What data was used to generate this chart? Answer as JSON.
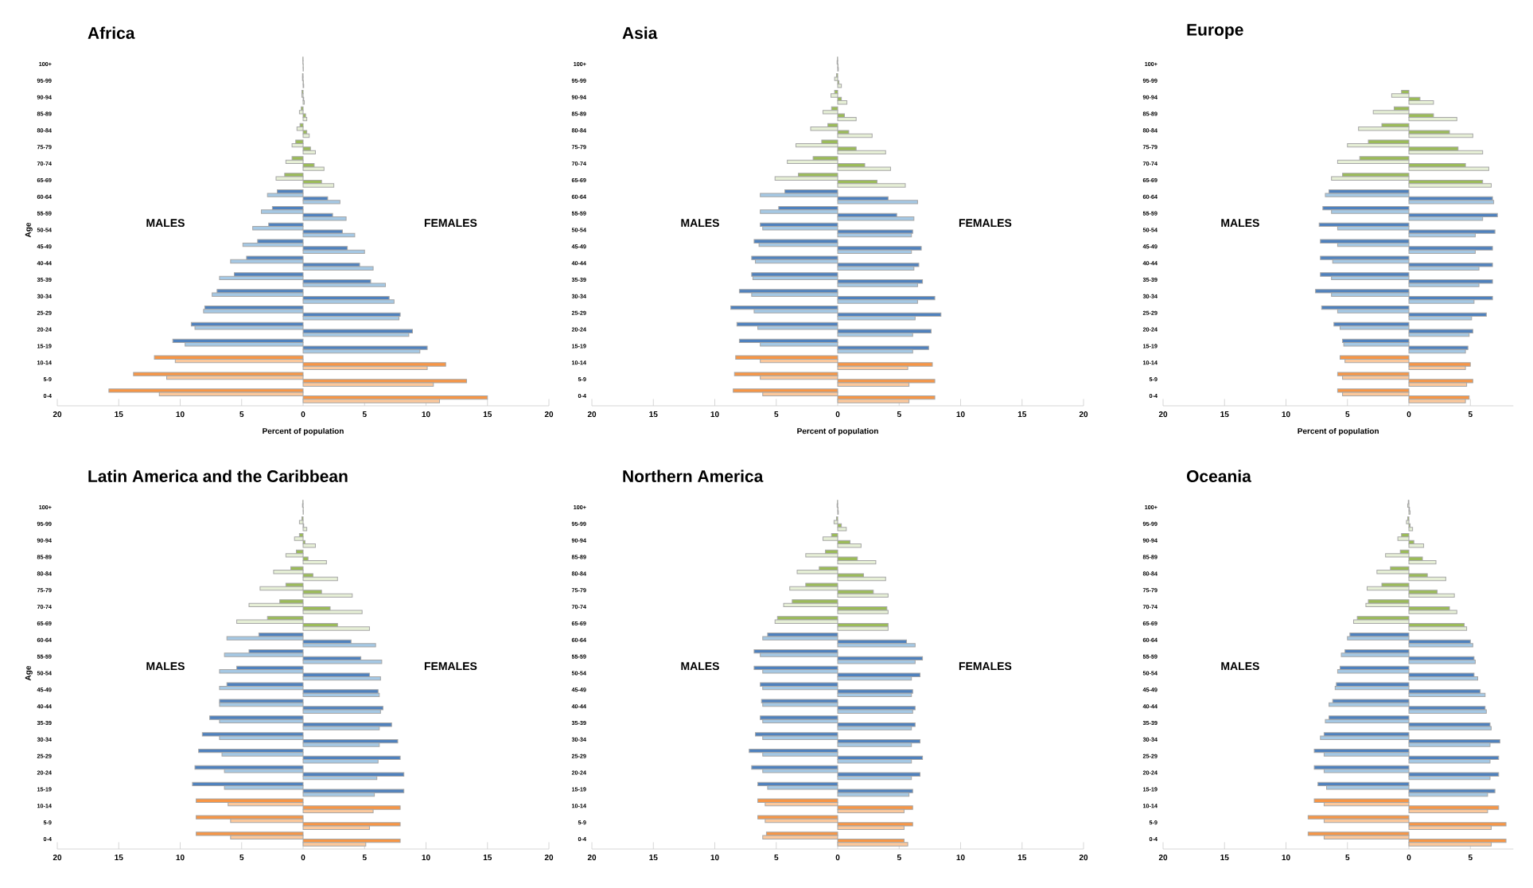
{
  "chart_data": [
    {
      "type": "bar",
      "orientation": "horizontal",
      "title": "Africa",
      "xlabel": "Percent of population",
      "ylabel": "Age",
      "categories": [
        "100+",
        "95-99",
        "90-94",
        "85-89",
        "80-84",
        "75-79",
        "70-74",
        "65-69",
        "60-64",
        "55-59",
        "50-54",
        "45-49",
        "40-44",
        "35-39",
        "30-34",
        "25-29",
        "20-24",
        "15-19",
        "10-14",
        "5-9",
        "0-4"
      ],
      "xlim": [
        -20,
        20
      ],
      "xticks": [
        {
          "value": -20,
          "label": "20"
        },
        {
          "value": -15,
          "label": "15"
        },
        {
          "value": -10,
          "label": "10"
        },
        {
          "value": -5,
          "label": "5"
        },
        0,
        5,
        10,
        15,
        20
      ],
      "annotations": [
        "MALES",
        "FEMALES"
      ],
      "series": [
        {
          "values": [
            -0.02,
            -0.05,
            -0.1,
            -0.15,
            -0.25,
            -0.6,
            -0.9,
            -1.5,
            -2.1,
            -2.5,
            -2.8,
            -3.7,
            -4.6,
            -5.6,
            -7.0,
            -8.0,
            -9.1,
            -10.6,
            -12.1,
            -13.8,
            -15.8
          ],
          "colors": [
            "#9bbb59",
            "#9bbb59",
            "#9bbb59",
            "#9bbb59",
            "#9bbb59",
            "#9bbb59",
            "#9bbb59",
            "#9bbb59",
            "#4f81bd",
            "#4f81bd",
            "#4f81bd",
            "#4f81bd",
            "#4f81bd",
            "#4f81bd",
            "#4f81bd",
            "#4f81bd",
            "#4f81bd",
            "#4f81bd",
            "#f79646",
            "#f79646",
            "#f79646"
          ]
        },
        {
          "values": [
            -0.02,
            -0.05,
            -0.1,
            -0.3,
            -0.5,
            -0.9,
            -1.4,
            -2.2,
            -2.9,
            -3.4,
            -4.1,
            -4.9,
            -5.9,
            -6.8,
            -7.4,
            -8.1,
            -8.8,
            -9.6,
            -10.4,
            -11.1,
            -11.7
          ],
          "colors": [
            "#e6efd6",
            "#e6efd6",
            "#e6efd6",
            "#e6efd6",
            "#e6efd6",
            "#e6efd6",
            "#e6efd6",
            "#e6efd6",
            "#a5c8e4",
            "#a5c8e4",
            "#a5c8e4",
            "#a5c8e4",
            "#a5c8e4",
            "#a5c8e4",
            "#a5c8e4",
            "#a5c8e4",
            "#a5c8e4",
            "#a5c8e4",
            "#fbc89c",
            "#fbc89c",
            "#fbc89c"
          ]
        },
        {
          "values": [
            0.01,
            0.02,
            0.05,
            0.2,
            0.3,
            0.6,
            0.9,
            1.5,
            2.0,
            2.4,
            3.2,
            3.6,
            4.6,
            5.5,
            7.0,
            7.9,
            8.9,
            10.1,
            11.6,
            13.3,
            15.0
          ],
          "colors": [
            "#9bbb59",
            "#9bbb59",
            "#9bbb59",
            "#9bbb59",
            "#9bbb59",
            "#9bbb59",
            "#9bbb59",
            "#9bbb59",
            "#4f81bd",
            "#4f81bd",
            "#4f81bd",
            "#4f81bd",
            "#4f81bd",
            "#4f81bd",
            "#4f81bd",
            "#4f81bd",
            "#4f81bd",
            "#4f81bd",
            "#f79646",
            "#f79646",
            "#f79646"
          ]
        },
        {
          "values": [
            0.02,
            0.05,
            0.1,
            0.3,
            0.5,
            1.0,
            1.7,
            2.5,
            3.0,
            3.5,
            4.2,
            5.0,
            5.7,
            6.7,
            7.4,
            7.8,
            8.6,
            9.5,
            10.1,
            10.6,
            11.1
          ],
          "colors": [
            "#e6efd6",
            "#e6efd6",
            "#e6efd6",
            "#e6efd6",
            "#e6efd6",
            "#e6efd6",
            "#e6efd6",
            "#e6efd6",
            "#a5c8e4",
            "#a5c8e4",
            "#a5c8e4",
            "#a5c8e4",
            "#a5c8e4",
            "#a5c8e4",
            "#a5c8e4",
            "#a5c8e4",
            "#a5c8e4",
            "#a5c8e4",
            "#fbc89c",
            "#fbc89c",
            "#fbc89c"
          ]
        }
      ]
    },
    {
      "type": "bar",
      "orientation": "horizontal",
      "title": "Asia",
      "xlabel": "Percent of population",
      "categories": [
        "100+",
        "95-99",
        "90-94",
        "85-89",
        "80-84",
        "75-79",
        "70-74",
        "65-69",
        "60-64",
        "55-59",
        "50-54",
        "45-49",
        "40-44",
        "35-39",
        "30-34",
        "25-29",
        "20-24",
        "15-19",
        "10-14",
        "5-9",
        "0-4"
      ],
      "xlim": [
        -20,
        20
      ],
      "xticks": [
        {
          "value": -20,
          "label": "20"
        },
        {
          "value": -15,
          "label": "15"
        },
        {
          "value": -10,
          "label": "10"
        },
        {
          "value": -5,
          "label": "5"
        },
        0,
        5,
        10,
        15,
        20
      ],
      "annotations": [
        "MALES",
        "FEMALES"
      ],
      "series": [
        {
          "values": [
            -0.02,
            -0.1,
            -0.25,
            -0.5,
            -0.8,
            -1.3,
            -2.0,
            -3.2,
            -4.3,
            -4.8,
            -6.3,
            -6.8,
            -7.0,
            -7.0,
            -8.0,
            -8.7,
            -8.2,
            -8.0,
            -8.3,
            -8.4,
            -8.5
          ],
          "colors": [
            "#9bbb59",
            "#9bbb59",
            "#9bbb59",
            "#9bbb59",
            "#9bbb59",
            "#9bbb59",
            "#9bbb59",
            "#9bbb59",
            "#4f81bd",
            "#4f81bd",
            "#4f81bd",
            "#4f81bd",
            "#4f81bd",
            "#4f81bd",
            "#4f81bd",
            "#4f81bd",
            "#4f81bd",
            "#4f81bd",
            "#f79646",
            "#f79646",
            "#f79646"
          ]
        },
        {
          "values": [
            -0.05,
            -0.25,
            -0.55,
            -1.2,
            -2.2,
            -3.4,
            -4.1,
            -5.1,
            -6.3,
            -6.3,
            -6.1,
            -6.4,
            -6.7,
            -6.9,
            -7.0,
            -6.8,
            -6.5,
            -6.3,
            -6.3,
            -6.3,
            -6.1
          ],
          "colors": [
            "#e6efd6",
            "#e6efd6",
            "#e6efd6",
            "#e6efd6",
            "#e6efd6",
            "#e6efd6",
            "#e6efd6",
            "#e6efd6",
            "#a5c8e4",
            "#a5c8e4",
            "#a5c8e4",
            "#a5c8e4",
            "#a5c8e4",
            "#a5c8e4",
            "#a5c8e4",
            "#a5c8e4",
            "#a5c8e4",
            "#a5c8e4",
            "#fbc89c",
            "#fbc89c",
            "#fbc89c"
          ]
        },
        {
          "values": [
            0.02,
            0.1,
            0.3,
            0.55,
            0.9,
            1.5,
            2.2,
            3.2,
            4.1,
            4.8,
            6.1,
            6.8,
            6.6,
            6.9,
            7.9,
            8.4,
            7.6,
            7.4,
            7.7,
            7.9,
            7.9
          ],
          "colors": [
            "#9bbb59",
            "#9bbb59",
            "#9bbb59",
            "#9bbb59",
            "#9bbb59",
            "#9bbb59",
            "#9bbb59",
            "#9bbb59",
            "#4f81bd",
            "#4f81bd",
            "#4f81bd",
            "#4f81bd",
            "#4f81bd",
            "#4f81bd",
            "#4f81bd",
            "#4f81bd",
            "#4f81bd",
            "#4f81bd",
            "#f79646",
            "#f79646",
            "#f79646"
          ]
        },
        {
          "values": [
            0.05,
            0.3,
            0.75,
            1.5,
            2.8,
            3.9,
            4.3,
            5.5,
            6.5,
            6.2,
            6.0,
            6.0,
            6.2,
            6.5,
            6.5,
            6.3,
            6.1,
            6.1,
            5.7,
            5.8,
            5.8
          ],
          "colors": [
            "#e6efd6",
            "#e6efd6",
            "#e6efd6",
            "#e6efd6",
            "#e6efd6",
            "#e6efd6",
            "#e6efd6",
            "#e6efd6",
            "#a5c8e4",
            "#a5c8e4",
            "#a5c8e4",
            "#a5c8e4",
            "#a5c8e4",
            "#a5c8e4",
            "#a5c8e4",
            "#a5c8e4",
            "#a5c8e4",
            "#a5c8e4",
            "#fbc89c",
            "#fbc89c",
            "#fbc89c"
          ]
        }
      ]
    },
    {
      "type": "bar",
      "orientation": "horizontal",
      "title": "Europe",
      "xlabel": "Percent of population",
      "categories": [
        "100+",
        "95-99",
        "90-94",
        "85-89",
        "80-84",
        "75-79",
        "70-74",
        "65-69",
        "60-64",
        "55-59",
        "50-54",
        "45-49",
        "40-44",
        "35-39",
        "30-34",
        "25-29",
        "20-24",
        "15-19",
        "10-14",
        "5-9",
        "0-4"
      ],
      "xlim": [
        -20,
        8.5
      ],
      "xticks": [
        {
          "value": -20,
          "label": "20"
        },
        {
          "value": -15,
          "label": "15"
        },
        {
          "value": -10,
          "label": "10"
        },
        {
          "value": -5,
          "label": "5"
        },
        0,
        5
      ],
      "annotations": [
        "MALES"
      ],
      "series": [
        {
          "values": [
            null,
            null,
            -0.6,
            -1.2,
            -2.2,
            -3.3,
            -4.0,
            -5.4,
            -6.5,
            -7.0,
            -7.3,
            -7.2,
            -7.2,
            -7.2,
            -7.6,
            -7.1,
            -6.1,
            -5.4,
            -5.6,
            -5.8,
            -5.8
          ],
          "colors": [
            "#9bbb59",
            "#9bbb59",
            "#9bbb59",
            "#9bbb59",
            "#9bbb59",
            "#9bbb59",
            "#9bbb59",
            "#9bbb59",
            "#4f81bd",
            "#4f81bd",
            "#4f81bd",
            "#4f81bd",
            "#4f81bd",
            "#4f81bd",
            "#4f81bd",
            "#4f81bd",
            "#4f81bd",
            "#4f81bd",
            "#f79646",
            "#f79646",
            "#f79646"
          ]
        },
        {
          "values": [
            null,
            null,
            -1.4,
            -2.9,
            -4.1,
            -5.0,
            -5.8,
            -6.3,
            -6.8,
            -6.3,
            -5.8,
            -5.8,
            -6.2,
            -6.3,
            -6.3,
            -5.8,
            -5.6,
            -5.3,
            -5.2,
            -5.4,
            -5.4
          ],
          "colors": [
            "#e6efd6",
            "#e6efd6",
            "#e6efd6",
            "#e6efd6",
            "#e6efd6",
            "#e6efd6",
            "#e6efd6",
            "#e6efd6",
            "#a5c8e4",
            "#a5c8e4",
            "#a5c8e4",
            "#a5c8e4",
            "#a5c8e4",
            "#a5c8e4",
            "#a5c8e4",
            "#a5c8e4",
            "#a5c8e4",
            "#a5c8e4",
            "#fbc89c",
            "#fbc89c",
            "#fbc89c"
          ]
        },
        {
          "values": [
            null,
            null,
            0.9,
            2.0,
            3.3,
            4.0,
            4.6,
            6.0,
            6.8,
            7.2,
            7.0,
            6.8,
            6.8,
            6.8,
            6.8,
            6.3,
            5.2,
            4.8,
            5.0,
            5.2,
            4.9
          ],
          "colors": [
            "#9bbb59",
            "#9bbb59",
            "#9bbb59",
            "#9bbb59",
            "#9bbb59",
            "#9bbb59",
            "#9bbb59",
            "#9bbb59",
            "#4f81bd",
            "#4f81bd",
            "#4f81bd",
            "#4f81bd",
            "#4f81bd",
            "#4f81bd",
            "#4f81bd",
            "#4f81bd",
            "#4f81bd",
            "#4f81bd",
            "#f79646",
            "#f79646",
            "#f79646"
          ]
        },
        {
          "values": [
            null,
            null,
            2.0,
            3.9,
            5.2,
            6.0,
            6.5,
            6.7,
            6.9,
            6.0,
            5.4,
            5.4,
            5.7,
            5.7,
            5.3,
            5.1,
            4.9,
            4.6,
            4.6,
            4.7,
            4.6
          ],
          "colors": [
            "#e6efd6",
            "#e6efd6",
            "#e6efd6",
            "#e6efd6",
            "#e6efd6",
            "#e6efd6",
            "#e6efd6",
            "#e6efd6",
            "#a5c8e4",
            "#a5c8e4",
            "#a5c8e4",
            "#a5c8e4",
            "#a5c8e4",
            "#a5c8e4",
            "#a5c8e4",
            "#a5c8e4",
            "#a5c8e4",
            "#a5c8e4",
            "#fbc89c",
            "#fbc89c",
            "#fbc89c"
          ]
        }
      ]
    },
    {
      "type": "bar",
      "orientation": "horizontal",
      "title": "Latin America and the Caribbean",
      "ylabel": "Age",
      "categories": [
        "100+",
        "95-99",
        "90-94",
        "85-89",
        "80-84",
        "75-79",
        "70-74",
        "65-69",
        "60-64",
        "55-59",
        "50-54",
        "45-49",
        "40-44",
        "35-39",
        "30-34",
        "25-29",
        "20-24",
        "15-19",
        "10-14",
        "5-9",
        "0-4"
      ],
      "xlim": [
        -20,
        20
      ],
      "xticks": [
        {
          "value": -20,
          "label": "20"
        },
        {
          "value": -15,
          "label": "15"
        },
        {
          "value": -10,
          "label": "10"
        },
        {
          "value": -5,
          "label": "5"
        },
        0,
        5,
        10,
        15,
        20
      ],
      "annotations": [
        "MALES",
        "FEMALES"
      ],
      "series": [
        {
          "values": [
            -0.02,
            -0.1,
            -0.3,
            -0.55,
            -1.0,
            -1.4,
            -1.9,
            -2.9,
            -3.6,
            -4.4,
            -5.4,
            -6.2,
            -6.8,
            -7.6,
            -8.2,
            -8.5,
            -8.8,
            -9.0,
            -8.7,
            -8.7,
            -8.7
          ],
          "colors": [
            "#9bbb59",
            "#9bbb59",
            "#9bbb59",
            "#9bbb59",
            "#9bbb59",
            "#9bbb59",
            "#9bbb59",
            "#9bbb59",
            "#4f81bd",
            "#4f81bd",
            "#4f81bd",
            "#4f81bd",
            "#4f81bd",
            "#4f81bd",
            "#4f81bd",
            "#4f81bd",
            "#4f81bd",
            "#4f81bd",
            "#f79646",
            "#f79646",
            "#f79646"
          ]
        },
        {
          "values": [
            -0.05,
            -0.3,
            -0.7,
            -1.4,
            -2.4,
            -3.5,
            -4.4,
            -5.4,
            -6.2,
            -6.4,
            -6.8,
            -6.8,
            -6.8,
            -6.8,
            -6.8,
            -6.6,
            -6.4,
            -6.4,
            -6.1,
            -5.9,
            -5.9
          ],
          "colors": [
            "#e6efd6",
            "#e6efd6",
            "#e6efd6",
            "#e6efd6",
            "#e6efd6",
            "#e6efd6",
            "#e6efd6",
            "#e6efd6",
            "#a5c8e4",
            "#a5c8e4",
            "#a5c8e4",
            "#a5c8e4",
            "#a5c8e4",
            "#a5c8e4",
            "#a5c8e4",
            "#a5c8e4",
            "#a5c8e4",
            "#a5c8e4",
            "#fbc89c",
            "#fbc89c",
            "#fbc89c"
          ]
        },
        {
          "values": [
            0.01,
            0.05,
            0.15,
            0.4,
            0.8,
            1.5,
            2.2,
            2.8,
            3.9,
            4.7,
            5.4,
            6.1,
            6.5,
            7.2,
            7.7,
            7.9,
            8.2,
            8.2,
            7.9,
            7.9,
            7.9
          ],
          "colors": [
            "#9bbb59",
            "#9bbb59",
            "#9bbb59",
            "#9bbb59",
            "#9bbb59",
            "#9bbb59",
            "#9bbb59",
            "#9bbb59",
            "#4f81bd",
            "#4f81bd",
            "#4f81bd",
            "#4f81bd",
            "#4f81bd",
            "#4f81bd",
            "#4f81bd",
            "#4f81bd",
            "#4f81bd",
            "#4f81bd",
            "#f79646",
            "#f79646",
            "#f79646"
          ]
        },
        {
          "values": [
            0.02,
            0.3,
            1.0,
            1.9,
            2.8,
            4.0,
            4.8,
            5.4,
            5.9,
            6.4,
            6.3,
            6.2,
            6.3,
            6.2,
            6.2,
            6.1,
            6.0,
            5.8,
            5.7,
            5.4,
            5.1
          ],
          "colors": [
            "#e6efd6",
            "#e6efd6",
            "#e6efd6",
            "#e6efd6",
            "#e6efd6",
            "#e6efd6",
            "#e6efd6",
            "#e6efd6",
            "#a5c8e4",
            "#a5c8e4",
            "#a5c8e4",
            "#a5c8e4",
            "#a5c8e4",
            "#a5c8e4",
            "#a5c8e4",
            "#a5c8e4",
            "#a5c8e4",
            "#a5c8e4",
            "#fbc89c",
            "#fbc89c",
            "#fbc89c"
          ]
        }
      ]
    },
    {
      "type": "bar",
      "orientation": "horizontal",
      "title": "Northern America",
      "categories": [
        "100+",
        "95-99",
        "90-94",
        "85-89",
        "80-84",
        "75-79",
        "70-74",
        "65-69",
        "60-64",
        "55-59",
        "50-54",
        "45-49",
        "40-44",
        "35-39",
        "30-34",
        "25-29",
        "20-24",
        "15-19",
        "10-14",
        "5-9",
        "0-4"
      ],
      "xlim": [
        -20,
        20
      ],
      "xticks": [
        {
          "value": -20,
          "label": "20"
        },
        {
          "value": -15,
          "label": "15"
        },
        {
          "value": -10,
          "label": "10"
        },
        {
          "value": -5,
          "label": "5"
        },
        0,
        5,
        10,
        15,
        20
      ],
      "annotations": [
        "MALES",
        "FEMALES"
      ],
      "series": [
        {
          "values": [
            -0.02,
            -0.1,
            -0.5,
            -1.0,
            -1.5,
            -2.6,
            -3.7,
            -4.9,
            -5.7,
            -6.8,
            -6.8,
            -6.3,
            -6.2,
            -6.3,
            -6.7,
            -7.2,
            -7.0,
            -6.5,
            -6.5,
            -6.5,
            -5.8
          ],
          "colors": [
            "#9bbb59",
            "#9bbb59",
            "#9bbb59",
            "#9bbb59",
            "#9bbb59",
            "#9bbb59",
            "#9bbb59",
            "#9bbb59",
            "#4f81bd",
            "#4f81bd",
            "#4f81bd",
            "#4f81bd",
            "#4f81bd",
            "#4f81bd",
            "#4f81bd",
            "#4f81bd",
            "#4f81bd",
            "#4f81bd",
            "#f79646",
            "#f79646",
            "#f79646"
          ]
        },
        {
          "values": [
            -0.05,
            -0.3,
            -1.2,
            -2.6,
            -3.3,
            -3.9,
            -4.4,
            -5.1,
            -6.1,
            -6.3,
            -6.1,
            -6.1,
            -6.1,
            -6.1,
            -6.1,
            -6.1,
            -6.1,
            -5.7,
            -5.9,
            -5.9,
            -6.1
          ],
          "colors": [
            "#e6efd6",
            "#e6efd6",
            "#e6efd6",
            "#e6efd6",
            "#e6efd6",
            "#e6efd6",
            "#e6efd6",
            "#e6efd6",
            "#a5c8e4",
            "#a5c8e4",
            "#a5c8e4",
            "#a5c8e4",
            "#a5c8e4",
            "#a5c8e4",
            "#a5c8e4",
            "#a5c8e4",
            "#a5c8e4",
            "#a5c8e4",
            "#fbc89c",
            "#fbc89c",
            "#fbc89c"
          ]
        },
        {
          "values": [
            0.02,
            0.3,
            1.0,
            1.6,
            2.1,
            2.9,
            4.0,
            4.1,
            5.6,
            6.9,
            6.7,
            6.1,
            6.3,
            6.3,
            6.7,
            6.9,
            6.7,
            6.1,
            6.1,
            6.1,
            5.4
          ],
          "colors": [
            "#9bbb59",
            "#9bbb59",
            "#9bbb59",
            "#9bbb59",
            "#9bbb59",
            "#9bbb59",
            "#9bbb59",
            "#9bbb59",
            "#4f81bd",
            "#4f81bd",
            "#4f81bd",
            "#4f81bd",
            "#4f81bd",
            "#4f81bd",
            "#4f81bd",
            "#4f81bd",
            "#4f81bd",
            "#4f81bd",
            "#f79646",
            "#f79646",
            "#f79646"
          ]
        },
        {
          "values": [
            0.05,
            0.7,
            1.9,
            3.1,
            3.9,
            4.1,
            4.1,
            4.1,
            6.3,
            6.3,
            6.0,
            6.0,
            6.1,
            6.0,
            6.0,
            6.0,
            6.0,
            5.8,
            5.4,
            5.4,
            5.7
          ],
          "colors": [
            "#e6efd6",
            "#e6efd6",
            "#e6efd6",
            "#e6efd6",
            "#e6efd6",
            "#e6efd6",
            "#e6efd6",
            "#e6efd6",
            "#a5c8e4",
            "#a5c8e4",
            "#a5c8e4",
            "#a5c8e4",
            "#a5c8e4",
            "#a5c8e4",
            "#a5c8e4",
            "#a5c8e4",
            "#a5c8e4",
            "#a5c8e4",
            "#fbc89c",
            "#fbc89c",
            "#fbc89c"
          ]
        }
      ]
    },
    {
      "type": "bar",
      "orientation": "horizontal",
      "title": "Oceania",
      "categories": [
        "100+",
        "95-99",
        "90-94",
        "85-89",
        "80-84",
        "75-79",
        "70-74",
        "65-69",
        "60-64",
        "55-59",
        "50-54",
        "45-49",
        "40-44",
        "35-39",
        "30-34",
        "25-29",
        "20-24",
        "15-19",
        "10-14",
        "5-9",
        "0-4"
      ],
      "xlim": [
        -20,
        8.5
      ],
      "xticks": [
        {
          "value": -20,
          "label": "20"
        },
        {
          "value": -15,
          "label": "15"
        },
        {
          "value": -10,
          "label": "10"
        },
        {
          "value": -5,
          "label": "5"
        },
        0,
        5
      ],
      "annotations": [
        "MALES"
      ],
      "series": [
        {
          "values": [
            -0.05,
            -0.1,
            -0.6,
            -0.7,
            -1.5,
            -2.2,
            -3.3,
            -4.2,
            -4.8,
            -5.2,
            -5.6,
            -5.9,
            -6.2,
            -6.5,
            -6.9,
            -7.7,
            -7.7,
            -7.4,
            -7.7,
            -8.2,
            -8.2
          ],
          "colors": [
            "#9bbb59",
            "#9bbb59",
            "#9bbb59",
            "#9bbb59",
            "#9bbb59",
            "#9bbb59",
            "#9bbb59",
            "#9bbb59",
            "#4f81bd",
            "#4f81bd",
            "#4f81bd",
            "#4f81bd",
            "#4f81bd",
            "#4f81bd",
            "#4f81bd",
            "#4f81bd",
            "#4f81bd",
            "#4f81bd",
            "#f79646",
            "#f79646",
            "#f79646"
          ]
        },
        {
          "values": [
            -0.1,
            -0.2,
            -0.9,
            -1.9,
            -2.6,
            -3.4,
            -3.5,
            -4.5,
            -5.0,
            -5.5,
            -5.8,
            -6.0,
            -6.5,
            -6.8,
            -7.2,
            -6.9,
            -6.9,
            -6.7,
            -6.9,
            -6.9,
            -6.9
          ],
          "colors": [
            "#e6efd6",
            "#e6efd6",
            "#e6efd6",
            "#e6efd6",
            "#e6efd6",
            "#e6efd6",
            "#e6efd6",
            "#e6efd6",
            "#a5c8e4",
            "#a5c8e4",
            "#a5c8e4",
            "#a5c8e4",
            "#a5c8e4",
            "#a5c8e4",
            "#a5c8e4",
            "#a5c8e4",
            "#a5c8e4",
            "#a5c8e4",
            "#fbc89c",
            "#fbc89c",
            "#fbc89c"
          ]
        },
        {
          "values": [
            0.05,
            0.1,
            0.4,
            1.1,
            1.5,
            2.3,
            3.3,
            4.5,
            5.0,
            5.3,
            5.3,
            5.8,
            6.2,
            6.6,
            7.4,
            7.3,
            7.3,
            7.0,
            7.3,
            7.9,
            7.9
          ],
          "colors": [
            "#9bbb59",
            "#9bbb59",
            "#9bbb59",
            "#9bbb59",
            "#9bbb59",
            "#9bbb59",
            "#9bbb59",
            "#9bbb59",
            "#4f81bd",
            "#4f81bd",
            "#4f81bd",
            "#4f81bd",
            "#4f81bd",
            "#4f81bd",
            "#4f81bd",
            "#4f81bd",
            "#4f81bd",
            "#4f81bd",
            "#f79646",
            "#f79646",
            "#f79646"
          ]
        },
        {
          "values": [
            0.1,
            0.3,
            1.2,
            2.2,
            3.0,
            3.7,
            3.9,
            4.7,
            5.2,
            5.4,
            5.6,
            6.2,
            6.3,
            6.7,
            6.6,
            6.6,
            6.6,
            6.4,
            6.4,
            6.7,
            6.7
          ],
          "colors": [
            "#e6efd6",
            "#e6efd6",
            "#e6efd6",
            "#e6efd6",
            "#e6efd6",
            "#e6efd6",
            "#e6efd6",
            "#e6efd6",
            "#a5c8e4",
            "#a5c8e4",
            "#a5c8e4",
            "#a5c8e4",
            "#a5c8e4",
            "#a5c8e4",
            "#a5c8e4",
            "#a5c8e4",
            "#a5c8e4",
            "#a5c8e4",
            "#fbc89c",
            "#fbc89c",
            "#fbc89c"
          ]
        }
      ]
    }
  ]
}
